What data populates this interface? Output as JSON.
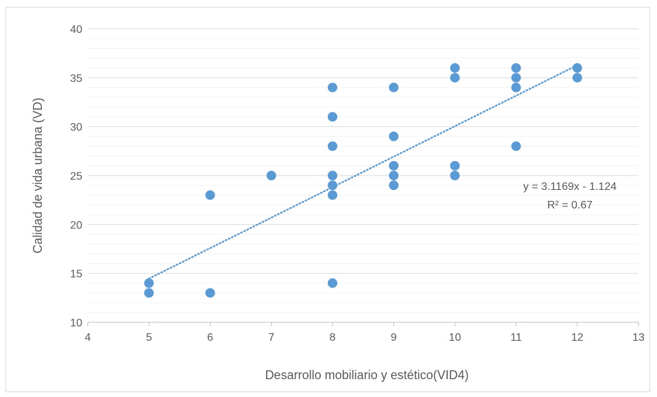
{
  "chart_data": {
    "type": "scatter",
    "title": "",
    "xlabel": "Desarrollo mobiliario y estético(VID4)",
    "ylabel": "Calidad de vida urbana (VD)",
    "xlim": [
      4,
      13
    ],
    "ylim": [
      10,
      40
    ],
    "x_ticks": [
      "4",
      "5",
      "6",
      "7",
      "8",
      "9",
      "10",
      "11",
      "12",
      "13"
    ],
    "y_ticks": [
      "10",
      "15",
      "20",
      "25",
      "30",
      "35",
      "40"
    ],
    "grid": "horizontal major and minor",
    "marker_color": "#5b9bd5",
    "trendline": {
      "type": "linear",
      "style": "dotted",
      "slope": 3.1169,
      "intercept": -1.124,
      "equation": "y = 3.1169x - 1.124",
      "r_squared": "R² = 0.67"
    },
    "points": [
      {
        "x": 5,
        "y": 14
      },
      {
        "x": 5,
        "y": 13
      },
      {
        "x": 6,
        "y": 23
      },
      {
        "x": 6,
        "y": 13
      },
      {
        "x": 7,
        "y": 25
      },
      {
        "x": 8,
        "y": 34
      },
      {
        "x": 8,
        "y": 31
      },
      {
        "x": 8,
        "y": 28
      },
      {
        "x": 8,
        "y": 25
      },
      {
        "x": 8,
        "y": 24
      },
      {
        "x": 8,
        "y": 23
      },
      {
        "x": 8,
        "y": 14
      },
      {
        "x": 9,
        "y": 34
      },
      {
        "x": 9,
        "y": 29
      },
      {
        "x": 9,
        "y": 26
      },
      {
        "x": 9,
        "y": 25
      },
      {
        "x": 9,
        "y": 24
      },
      {
        "x": 10,
        "y": 36
      },
      {
        "x": 10,
        "y": 35
      },
      {
        "x": 10,
        "y": 26
      },
      {
        "x": 10,
        "y": 25
      },
      {
        "x": 11,
        "y": 36
      },
      {
        "x": 11,
        "y": 35
      },
      {
        "x": 11,
        "y": 34
      },
      {
        "x": 11,
        "y": 28
      },
      {
        "x": 12,
        "y": 36
      },
      {
        "x": 12,
        "y": 35
      }
    ]
  }
}
